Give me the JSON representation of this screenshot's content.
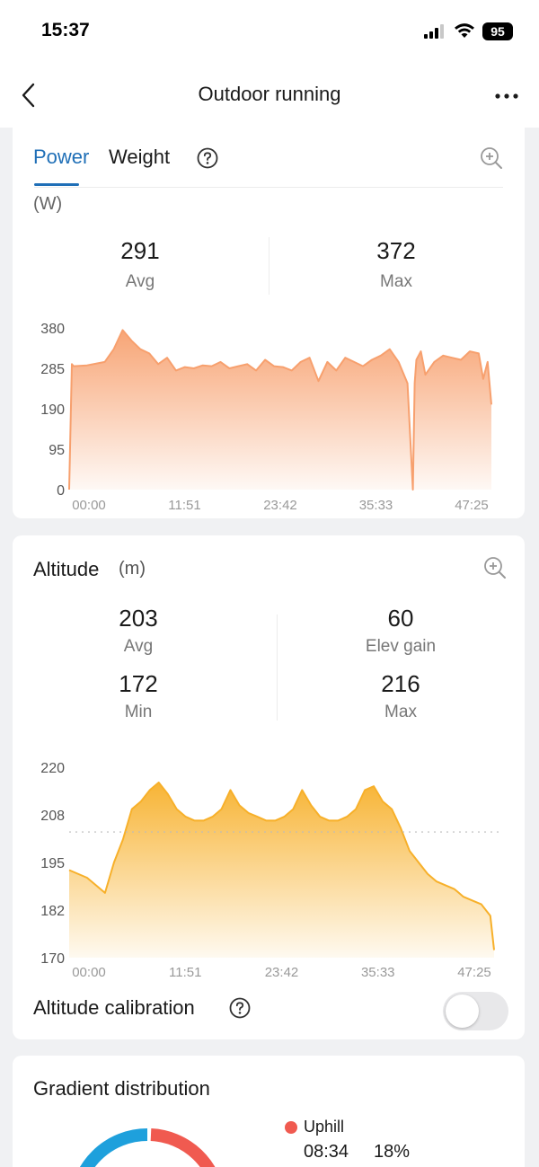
{
  "status_bar": {
    "time": "15:37",
    "battery": "95"
  },
  "nav": {
    "title": "Outdoor running"
  },
  "power": {
    "tabs": [
      "Power",
      "Weight"
    ],
    "active_tab": "Power",
    "unit": "(W)",
    "avg_value": "291",
    "avg_label": "Avg",
    "max_value": "372",
    "max_label": "Max",
    "chart_data": {
      "type": "area",
      "color": "#f7a06e",
      "x_ticks": [
        "00:00",
        "11:51",
        "23:42",
        "35:33",
        "47:25"
      ],
      "y_ticks": [
        "380",
        "285",
        "190",
        "95",
        "0"
      ],
      "ylim": [
        0,
        380
      ],
      "duration_min": 47.42,
      "x": [
        0,
        0.3,
        0.5,
        2,
        4,
        5,
        6,
        7,
        8,
        9,
        10,
        11,
        12,
        13,
        14,
        15,
        16,
        17,
        18,
        19,
        20,
        21,
        22,
        23,
        24,
        25,
        26,
        27,
        28,
        29,
        30,
        31,
        32,
        33,
        34,
        35,
        36,
        37,
        38,
        38.6,
        38.8,
        39.0,
        39.5,
        40,
        41,
        42,
        43,
        44,
        45,
        46,
        46.5,
        47,
        47.42
      ],
      "y": [
        0,
        295,
        290,
        292,
        300,
        330,
        375,
        350,
        330,
        320,
        295,
        310,
        280,
        288,
        285,
        292,
        290,
        300,
        285,
        290,
        295,
        280,
        305,
        290,
        288,
        280,
        300,
        310,
        255,
        300,
        280,
        310,
        300,
        290,
        305,
        315,
        330,
        300,
        250,
        0,
        250,
        305,
        325,
        270,
        300,
        315,
        310,
        305,
        325,
        320,
        260,
        300,
        200
      ]
    }
  },
  "altitude": {
    "title": "Altitude",
    "unit": "(m)",
    "avg_value": "203",
    "avg_label": "Avg",
    "gain_value": "60",
    "gain_label": "Elev gain",
    "min_value": "172",
    "min_label": "Min",
    "max_value": "216",
    "max_label": "Max",
    "chart_data": {
      "type": "area",
      "color": "#f7b02a",
      "x_ticks": [
        "00:00",
        "11:51",
        "23:42",
        "35:33",
        "47:25"
      ],
      "y_ticks": [
        "220",
        "208",
        "195",
        "182",
        "170"
      ],
      "ylim": [
        170,
        220
      ],
      "avg_line": 203,
      "duration_min": 47.42,
      "x": [
        0,
        2,
        4,
        5,
        6,
        7,
        8,
        9,
        10,
        11,
        12,
        13,
        14,
        15,
        16,
        17,
        18,
        19,
        20,
        21,
        22,
        23,
        24,
        25,
        26,
        27,
        28,
        29,
        30,
        31,
        32,
        33,
        34,
        35,
        36,
        37,
        38,
        39,
        40,
        41,
        42,
        43,
        44,
        45,
        46,
        47,
        47.42
      ],
      "y": [
        193,
        191,
        187,
        195,
        201,
        209,
        211,
        214,
        216,
        213,
        209,
        207,
        206,
        206,
        207,
        209,
        214,
        210,
        208,
        207,
        206,
        206,
        207,
        209,
        214,
        210,
        207,
        206,
        206,
        207,
        209,
        214,
        215,
        211,
        209,
        204,
        198,
        195,
        192,
        190,
        189,
        188,
        186,
        185,
        184,
        181,
        172
      ]
    },
    "calibration_label": "Altitude calibration"
  },
  "gradient": {
    "title": "Gradient distribution",
    "uphill_label": "Uphill",
    "uphill_time": "08:34",
    "uphill_pct": "18%",
    "colors": {
      "uphill": "#f05a50",
      "other": "#1ea0dc"
    }
  }
}
